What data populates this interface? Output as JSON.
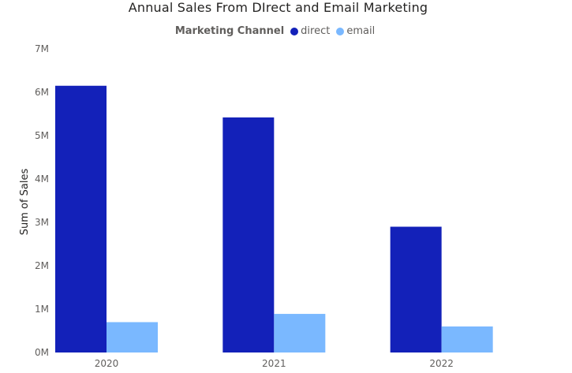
{
  "chart_data": {
    "type": "bar",
    "title": "Annual Sales From DIrect and Email Marketing",
    "xlabel": "",
    "ylabel": "Sum of Sales",
    "categories": [
      "2020",
      "2021",
      "2022"
    ],
    "legend_title": "Marketing Channel",
    "legend_position": "top-center",
    "series": [
      {
        "name": "direct",
        "color": "#1321b9",
        "values": [
          6150000,
          5420000,
          2900000
        ]
      },
      {
        "name": "email",
        "color": "#7ab8ff",
        "values": [
          700000,
          890000,
          600000
        ]
      }
    ],
    "ylim": [
      0,
      7000000
    ],
    "yticks": [
      0,
      1000000,
      2000000,
      3000000,
      4000000,
      5000000,
      6000000,
      7000000
    ],
    "ytick_labels": [
      "0M",
      "1M",
      "2M",
      "3M",
      "4M",
      "5M",
      "6M",
      "7M"
    ],
    "grid": false
  }
}
